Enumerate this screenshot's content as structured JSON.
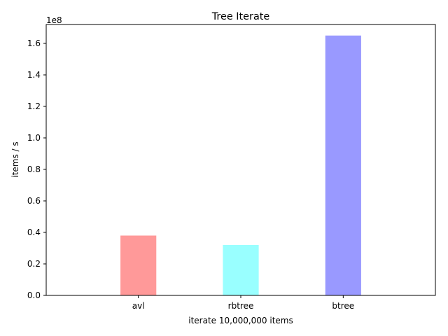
{
  "chart_data": {
    "type": "bar",
    "title": "Tree Iterate",
    "xlabel": "iterate 10,000,000 items",
    "ylabel": "items / s",
    "y_offset_label": "1e8",
    "y_scale": 100000000,
    "categories": [
      "avl",
      "rbtree",
      "btree"
    ],
    "values": [
      38000000,
      32000000,
      165000000
    ],
    "colors": [
      "#ff9999",
      "#99ffff",
      "#9999ff"
    ],
    "ylim": [
      0,
      172000000
    ],
    "y_ticks": [
      0,
      20000000,
      40000000,
      60000000,
      80000000,
      100000000,
      120000000,
      140000000,
      160000000
    ],
    "y_tick_labels": [
      "0.0",
      "0.2",
      "0.4",
      "0.6",
      "0.8",
      "1.0",
      "1.2",
      "1.4",
      "1.6"
    ],
    "grid": false,
    "legend": "none"
  }
}
